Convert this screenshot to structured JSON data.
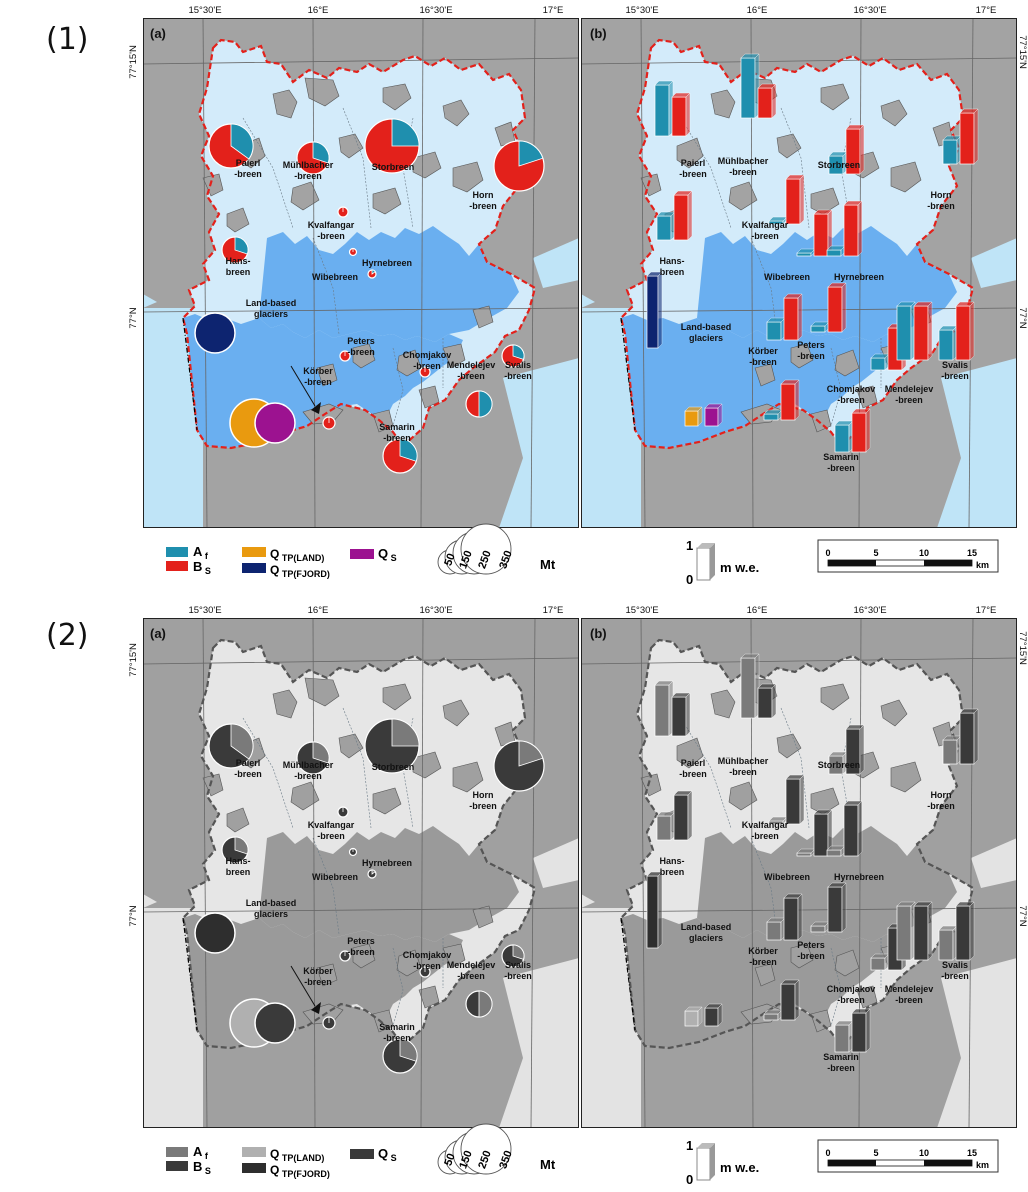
{
  "figure_labels": {
    "one": "(1)",
    "two": "(2)"
  },
  "panel_letters": {
    "a": "(a)",
    "b": "(b)"
  },
  "coords": {
    "lon": [
      "15°30'E",
      "16°E",
      "16°30'E",
      "17°E"
    ],
    "lat_top": "77°15'N",
    "lat_mid": "77°N"
  },
  "glaciers": [
    {
      "l1": "Paierl",
      "l2": "-breen"
    },
    {
      "l1": "Mühlbacher",
      "l2": "-breen"
    },
    {
      "l1": "Storbreen",
      "l2": ""
    },
    {
      "l1": "Horn",
      "l2": "-breen"
    },
    {
      "l1": "Kvalfangar",
      "l2": "-breen"
    },
    {
      "l1": "Hans-",
      "l2": "breen"
    },
    {
      "l1": "Hyrnebreen",
      "l2": ""
    },
    {
      "l1": "Wibebreen",
      "l2": ""
    },
    {
      "l1": "Körber",
      "l2": "-breen"
    },
    {
      "l1": "Peters",
      "l2": "-breen"
    },
    {
      "l1": "Chomjakov",
      "l2": "-breen"
    },
    {
      "l1": "Mendelejev",
      "l2": "-breen"
    },
    {
      "l1": "Svalis",
      "l2": "-breen"
    },
    {
      "l1": "Samarin",
      "l2": "-breen"
    },
    {
      "l1": "Land-based",
      "l2": "glaciers"
    }
  ],
  "legend": {
    "af": "A",
    "af_sub": "f",
    "bs": "B",
    "bs_sub": "S",
    "qland": "Q",
    "qland_sub": "TP(LAND)",
    "qfjord": "Q",
    "qfjord_sub": "TP(FJORD)",
    "qs": "Q",
    "qs_sub": "S",
    "circle_values": [
      "50",
      "150",
      "250",
      "350"
    ],
    "circle_unit": "Mt",
    "bar_max": "1",
    "bar_min": "0",
    "bar_unit": "m w.e.",
    "scale_ticks": [
      "0",
      "5",
      "10",
      "15"
    ],
    "scale_unit": "km"
  },
  "colors": {
    "af": "#1f8fae",
    "bs": "#e3211b",
    "qland": "#e99a0f",
    "qfjord": "#0d2470",
    "qs": "#9c1290",
    "land": "#a3a3a3",
    "sea": "#bfe4f7",
    "ice": "#d3ebfa",
    "fjord_ice": "#6aaff0",
    "boundary": "#e3211b"
  },
  "map_data": {
    "pie_glaciers": [
      {
        "name": "Paierl-breen",
        "af_share": 0.35
      },
      {
        "name": "Mühlbacher-breen",
        "af_share": 0.3
      },
      {
        "name": "Storbreen",
        "af_share": 0.25
      },
      {
        "name": "Horn-breen",
        "af_share": 0.2
      },
      {
        "name": "Hans-breen",
        "af_share": 0.3
      },
      {
        "name": "Svalis-breen",
        "af_share": 0.3
      },
      {
        "name": "Mendelejev-breen",
        "af_share": 0.5
      },
      {
        "name": "Samarin-breen",
        "af_share": 0.3
      }
    ],
    "bar_glaciers": [
      {
        "name": "Paierl-breen",
        "af": 0.85,
        "bs": 0.65
      },
      {
        "name": "Mühlbacher-breen",
        "af": 1.0,
        "bs": 0.5
      },
      {
        "name": "Storbreen",
        "af": 0.3,
        "bs": 0.75
      },
      {
        "name": "Horn-breen",
        "af": 0.4,
        "bs": 0.85
      },
      {
        "name": "Hans-breen",
        "af": 0.4,
        "bs": 0.75
      },
      {
        "name": "Kvalfangar-breen",
        "af": 0.05,
        "bs": 0.75
      },
      {
        "name": "Wibebreen",
        "af": 0.05,
        "bs": 0.7
      },
      {
        "name": "Hyrnebreen",
        "af": 0.1,
        "bs": 0.85
      },
      {
        "name": "Peters-breen",
        "af": 0.1,
        "bs": 0.75
      },
      {
        "name": "Körber-breen",
        "af": 0.3,
        "bs": 0.7
      },
      {
        "name": "Chomjakov-breen",
        "af": 0.2,
        "bs": 0.7
      },
      {
        "name": "Mendelejev-breen",
        "af": 0.9,
        "bs": 0.9
      },
      {
        "name": "Svalis-breen",
        "af": 0.5,
        "bs": 0.9
      },
      {
        "name": "Samarin-breen",
        "af": 0.45,
        "bs": 0.65
      },
      {
        "name": "Land-based glaciers",
        "af": 0.1,
        "bs": 0.6
      }
    ],
    "fjord_bar": 1.2,
    "land_bars": [
      0.25,
      0.3
    ]
  }
}
